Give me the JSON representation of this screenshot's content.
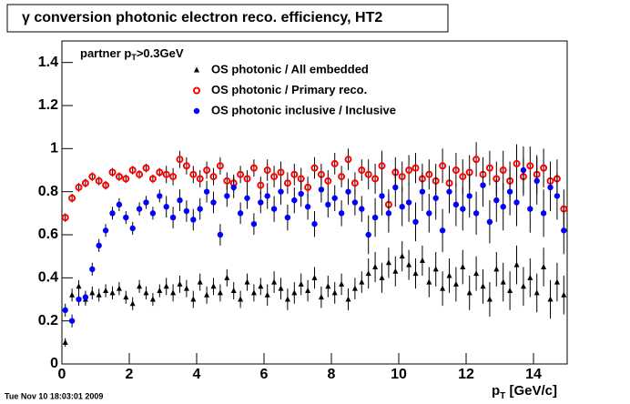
{
  "chart_data": {
    "type": "scatter",
    "title": "γ conversion photonic electron reco. efficiency, HT2",
    "annotation": {
      "main": "partner p",
      "sub": "T",
      "rest": ">0.3GeV"
    },
    "xlabel": {
      "main": "p",
      "sub": "T",
      "rest": " [GeV/c]"
    },
    "footer": "Tue Nov 10 18:03:01 2009",
    "xlim": [
      0,
      15
    ],
    "ylim": [
      0,
      1.5
    ],
    "xticks": [
      0,
      2,
      4,
      6,
      8,
      10,
      12,
      14
    ],
    "yticks": [
      0,
      0.2,
      0.4,
      0.6,
      0.8,
      1,
      1.2,
      1.4
    ],
    "x": [
      0.1,
      0.3,
      0.5,
      0.7,
      0.9,
      1.1,
      1.3,
      1.5,
      1.7,
      1.9,
      2.1,
      2.3,
      2.5,
      2.7,
      2.9,
      3.1,
      3.3,
      3.5,
      3.7,
      3.9,
      4.1,
      4.3,
      4.5,
      4.7,
      4.9,
      5.1,
      5.3,
      5.5,
      5.7,
      5.9,
      6.1,
      6.3,
      6.5,
      6.7,
      6.9,
      7.1,
      7.3,
      7.5,
      7.7,
      7.9,
      8.1,
      8.3,
      8.5,
      8.7,
      8.9,
      9.1,
      9.3,
      9.5,
      9.7,
      9.9,
      10.1,
      10.3,
      10.5,
      10.7,
      10.9,
      11.1,
      11.3,
      11.5,
      11.7,
      11.9,
      12.1,
      12.3,
      12.5,
      12.7,
      12.9,
      13.1,
      13.3,
      13.5,
      13.7,
      13.9,
      14.1,
      14.3,
      14.5,
      14.7,
      14.9
    ],
    "series": [
      {
        "name": "OS photonic / All embedded",
        "color": "#000000",
        "marker": "triangle",
        "values": [
          0.1,
          0.32,
          0.36,
          0.3,
          0.33,
          0.32,
          0.34,
          0.33,
          0.35,
          0.31,
          0.28,
          0.36,
          0.33,
          0.3,
          0.34,
          0.36,
          0.33,
          0.37,
          0.35,
          0.3,
          0.38,
          0.32,
          0.36,
          0.33,
          0.4,
          0.34,
          0.3,
          0.38,
          0.33,
          0.36,
          0.32,
          0.38,
          0.35,
          0.3,
          0.33,
          0.37,
          0.34,
          0.4,
          0.31,
          0.36,
          0.33,
          0.37,
          0.3,
          0.35,
          0.38,
          0.42,
          0.45,
          0.4,
          0.47,
          0.43,
          0.5,
          0.46,
          0.42,
          0.48,
          0.38,
          0.44,
          0.35,
          0.41,
          0.37,
          0.45,
          0.33,
          0.42,
          0.36,
          0.3,
          0.44,
          0.38,
          0.34,
          0.46,
          0.36,
          0.4,
          0.33,
          0.45,
          0.3,
          0.38,
          0.32
        ],
        "errors": [
          0.02,
          0.03,
          0.03,
          0.03,
          0.03,
          0.03,
          0.03,
          0.03,
          0.03,
          0.03,
          0.03,
          0.03,
          0.03,
          0.03,
          0.03,
          0.04,
          0.04,
          0.04,
          0.04,
          0.04,
          0.04,
          0.04,
          0.04,
          0.04,
          0.04,
          0.04,
          0.04,
          0.04,
          0.04,
          0.04,
          0.05,
          0.05,
          0.05,
          0.05,
          0.05,
          0.05,
          0.05,
          0.05,
          0.05,
          0.05,
          0.05,
          0.05,
          0.05,
          0.05,
          0.05,
          0.07,
          0.07,
          0.07,
          0.07,
          0.07,
          0.07,
          0.07,
          0.07,
          0.07,
          0.07,
          0.08,
          0.08,
          0.08,
          0.08,
          0.08,
          0.08,
          0.08,
          0.08,
          0.08,
          0.08,
          0.09,
          0.09,
          0.09,
          0.09,
          0.09,
          0.09,
          0.09,
          0.09,
          0.09,
          0.09
        ]
      },
      {
        "name": "OS photonic / Primary reco.",
        "color": "#ff0000",
        "marker": "open-circle",
        "values": [
          0.68,
          0.77,
          0.82,
          0.84,
          0.87,
          0.85,
          0.83,
          0.89,
          0.87,
          0.86,
          0.9,
          0.88,
          0.91,
          0.86,
          0.89,
          0.88,
          0.87,
          0.95,
          0.92,
          0.88,
          0.86,
          0.9,
          0.87,
          0.92,
          0.85,
          0.84,
          0.88,
          0.86,
          0.91,
          0.83,
          0.9,
          0.87,
          0.89,
          0.84,
          0.88,
          0.86,
          0.82,
          0.91,
          0.88,
          0.85,
          0.93,
          0.87,
          0.95,
          0.84,
          0.9,
          0.88,
          0.86,
          0.92,
          0.74,
          0.89,
          0.87,
          0.9,
          0.91,
          0.86,
          0.88,
          0.85,
          0.92,
          0.84,
          0.9,
          0.87,
          0.89,
          0.95,
          0.88,
          0.91,
          0.86,
          0.9,
          0.85,
          0.93,
          0.87,
          0.92,
          0.88,
          0.91,
          0.85,
          0.86,
          0.72
        ],
        "errors": [
          0.02,
          0.02,
          0.02,
          0.02,
          0.02,
          0.02,
          0.02,
          0.02,
          0.02,
          0.02,
          0.02,
          0.02,
          0.02,
          0.02,
          0.02,
          0.04,
          0.04,
          0.04,
          0.04,
          0.04,
          0.04,
          0.04,
          0.04,
          0.04,
          0.04,
          0.04,
          0.04,
          0.04,
          0.04,
          0.04,
          0.05,
          0.05,
          0.05,
          0.05,
          0.05,
          0.05,
          0.05,
          0.05,
          0.05,
          0.05,
          0.05,
          0.05,
          0.05,
          0.05,
          0.05,
          0.07,
          0.07,
          0.07,
          0.07,
          0.07,
          0.07,
          0.07,
          0.07,
          0.07,
          0.07,
          0.08,
          0.08,
          0.08,
          0.08,
          0.08,
          0.08,
          0.08,
          0.08,
          0.08,
          0.08,
          0.09,
          0.09,
          0.09,
          0.09,
          0.09,
          0.09,
          0.09,
          0.09,
          0.09,
          0.09
        ]
      },
      {
        "name": "OS photonic inclusive / Inclusive",
        "color": "#0000ff",
        "marker": "circle",
        "values": [
          0.25,
          0.2,
          0.3,
          0.31,
          0.44,
          0.55,
          0.62,
          0.7,
          0.74,
          0.68,
          0.63,
          0.72,
          0.75,
          0.7,
          0.78,
          0.73,
          0.68,
          0.76,
          0.71,
          0.67,
          0.72,
          0.8,
          0.75,
          0.6,
          0.78,
          0.82,
          0.7,
          0.77,
          0.65,
          0.75,
          0.78,
          0.72,
          0.8,
          0.68,
          0.76,
          0.79,
          0.73,
          0.65,
          0.81,
          0.74,
          0.77,
          0.7,
          0.8,
          0.75,
          0.72,
          0.6,
          0.68,
          0.78,
          0.7,
          0.82,
          0.73,
          0.75,
          0.66,
          0.8,
          0.7,
          0.77,
          0.62,
          0.8,
          0.74,
          0.72,
          0.78,
          0.7,
          0.83,
          0.66,
          0.76,
          0.73,
          0.8,
          0.75,
          0.9,
          0.72,
          0.85,
          0.7,
          0.82,
          0.78,
          0.62
        ],
        "errors": [
          0.03,
          0.03,
          0.03,
          0.03,
          0.03,
          0.03,
          0.03,
          0.03,
          0.03,
          0.03,
          0.03,
          0.03,
          0.03,
          0.03,
          0.03,
          0.05,
          0.05,
          0.05,
          0.05,
          0.05,
          0.05,
          0.05,
          0.05,
          0.05,
          0.05,
          0.05,
          0.05,
          0.05,
          0.05,
          0.05,
          0.06,
          0.06,
          0.06,
          0.06,
          0.06,
          0.06,
          0.06,
          0.06,
          0.06,
          0.06,
          0.06,
          0.06,
          0.06,
          0.06,
          0.06,
          0.09,
          0.09,
          0.09,
          0.09,
          0.09,
          0.09,
          0.09,
          0.09,
          0.09,
          0.09,
          0.1,
          0.1,
          0.1,
          0.1,
          0.1,
          0.1,
          0.1,
          0.1,
          0.1,
          0.1,
          0.11,
          0.11,
          0.11,
          0.11,
          0.11,
          0.11,
          0.11,
          0.11,
          0.11,
          0.11
        ]
      }
    ]
  }
}
